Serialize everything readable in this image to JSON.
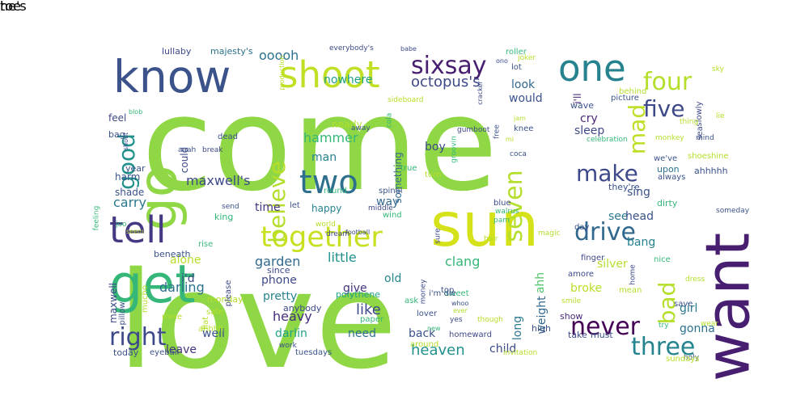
{
  "words": [
    {
      "text": "come",
      "color": "#8fd744"
    },
    {
      "text": "love",
      "color": "#8fd744"
    },
    {
      "text": "sun",
      "color": "#d5e21a"
    },
    {
      "text": "want",
      "color": "#481f70"
    },
    {
      "text": "know",
      "color": "#3b528b"
    },
    {
      "text": "one",
      "color": "#26828e"
    },
    {
      "text": "get",
      "color": "#35b779"
    },
    {
      "text": "go",
      "color": "#8fd744"
    },
    {
      "text": "tell",
      "color": "#443983"
    },
    {
      "text": "shoot",
      "color": "#c0df25"
    },
    {
      "text": "sixsay",
      "color": "#481f70"
    },
    {
      "text": "together",
      "color": "#c8e020"
    },
    {
      "text": "two",
      "color": "#2d708e"
    },
    {
      "text": "four",
      "color": "#b5de2b"
    },
    {
      "text": "five",
      "color": "#3e4989"
    },
    {
      "text": "mad",
      "color": "#bddf26"
    },
    {
      "text": "make",
      "color": "#3e4989"
    },
    {
      "text": "drive",
      "color": "#31688e"
    },
    {
      "text": "never",
      "color": "#440154"
    },
    {
      "text": "three",
      "color": "#25858e"
    },
    {
      "text": "right",
      "color": "#3e4989"
    },
    {
      "text": "bad",
      "color": "#b5de2b"
    },
    {
      "text": "seven",
      "color": "#b5de2b"
    },
    {
      "text": "believe",
      "color": "#b5de2b"
    },
    {
      "text": "good",
      "color": "#21918c"
    },
    {
      "text": "octopus's",
      "color": "#3e4989"
    },
    {
      "text": "ooooh",
      "color": "#2c728e"
    },
    {
      "text": "nowhere",
      "color": "#1fa187"
    },
    {
      "text": "look",
      "color": "#31688e"
    },
    {
      "text": "would",
      "color": "#3b528b"
    },
    {
      "text": "cry",
      "color": "#482878"
    },
    {
      "text": "sleep",
      "color": "#3e4989"
    },
    {
      "text": "hammer",
      "color": "#35b779"
    },
    {
      "text": "man",
      "color": "#26828e"
    },
    {
      "text": "boy",
      "color": "#3e4989"
    },
    {
      "text": "maxwell's",
      "color": "#3e4989"
    },
    {
      "text": "carry",
      "color": "#2a788e"
    },
    {
      "text": "sing",
      "color": "#3b528b"
    },
    {
      "text": "see",
      "color": "#2a788e"
    },
    {
      "text": "head",
      "color": "#3b528b"
    },
    {
      "text": "bang",
      "color": "#26828e"
    },
    {
      "text": "garden",
      "color": "#31688e"
    },
    {
      "text": "little",
      "color": "#21918c"
    },
    {
      "text": "clang",
      "color": "#35b779"
    },
    {
      "text": "old",
      "color": "#25858e"
    },
    {
      "text": "ahh",
      "color": "#50c46a"
    },
    {
      "text": "silver",
      "color": "#b5de2b"
    },
    {
      "text": "way",
      "color": "#31688e"
    },
    {
      "text": "time",
      "color": "#46337e"
    },
    {
      "text": "phone",
      "color": "#3e4989"
    },
    {
      "text": "pretty",
      "color": "#26828e"
    },
    {
      "text": "give",
      "color": "#46337e"
    },
    {
      "text": "like",
      "color": "#3e4989"
    },
    {
      "text": "weight",
      "color": "#31688e"
    },
    {
      "text": "darling",
      "color": "#2c728e"
    },
    {
      "text": "heavy",
      "color": "#472d7b"
    },
    {
      "text": "darlin",
      "color": "#1fa187"
    },
    {
      "text": "need",
      "color": "#2c728e"
    },
    {
      "text": "back",
      "color": "#3b528b"
    },
    {
      "text": "heaven",
      "color": "#21918c"
    },
    {
      "text": "child",
      "color": "#3e4989"
    },
    {
      "text": "long",
      "color": "#2a788e"
    },
    {
      "text": "broke",
      "color": "#b5de2b"
    },
    {
      "text": "girl",
      "color": "#2a788e"
    },
    {
      "text": "gonna",
      "color": "#2c728e"
    },
    {
      "text": "well",
      "color": "#3b528b"
    },
    {
      "text": "leave",
      "color": "#46337e"
    },
    {
      "text": "alone",
      "color": "#b5de2b"
    },
    {
      "text": "i'd",
      "color": "#3e4989"
    },
    {
      "text": "happy",
      "color": "#26828e"
    },
    {
      "text": "something",
      "color": "#31688e"
    },
    {
      "text": "nearly",
      "color": "#b5de2b"
    },
    {
      "text": "harm",
      "color": "#3b528b"
    },
    {
      "text": "shade",
      "color": "#3b528b"
    },
    {
      "text": "could",
      "color": "#3e4989"
    },
    {
      "text": "upon",
      "color": "#2c728e"
    },
    {
      "text": "ahhhhh",
      "color": "#3b528b"
    },
    {
      "text": "they're",
      "color": "#3b528b"
    },
    {
      "text": "always",
      "color": "#3b528b"
    },
    {
      "text": "dirty",
      "color": "#35b779"
    },
    {
      "text": "i'll",
      "color": "#482878"
    },
    {
      "text": "lullaby",
      "color": "#3e4989"
    },
    {
      "text": "majesty's",
      "color": "#2c728e"
    },
    {
      "text": "feel",
      "color": "#3e4989"
    },
    {
      "text": "bag",
      "color": "#3b528b"
    },
    {
      "text": "year",
      "color": "#3b528b"
    },
    {
      "text": "maxwell",
      "color": "#3e4989"
    },
    {
      "text": "mucho",
      "color": "#b5de2b"
    },
    {
      "text": "pillow",
      "color": "#3b528b"
    },
    {
      "text": "today",
      "color": "#3b528b"
    },
    {
      "text": "eyeball",
      "color": "#3b528b"
    },
    {
      "text": "tuesdays",
      "color": "#3b528b"
    },
    {
      "text": "work",
      "color": "#3b528b"
    },
    {
      "text": "homeward",
      "color": "#3e4989"
    },
    {
      "text": "invitation",
      "color": "#b5de2b"
    },
    {
      "text": "holy",
      "color": "#3b528b"
    },
    {
      "text": "sundays",
      "color": "#b5de2b"
    },
    {
      "text": "must",
      "color": "#3b528b"
    },
    {
      "text": "take",
      "color": "#3e4989"
    },
    {
      "text": "show",
      "color": "#482878"
    },
    {
      "text": "high",
      "color": "#3b528b"
    },
    {
      "text": "lover",
      "color": "#3b528b"
    },
    {
      "text": "ask",
      "color": "#35b779"
    },
    {
      "text": "paper",
      "color": "#35b779"
    },
    {
      "text": "polythene",
      "color": "#1fa187"
    },
    {
      "text": "anybody",
      "color": "#3e4989"
    },
    {
      "text": "since",
      "color": "#3e4989"
    },
    {
      "text": "king",
      "color": "#35b779"
    },
    {
      "text": "monday",
      "color": "#b5de2b"
    },
    {
      "text": "beneath",
      "color": "#3b528b"
    },
    {
      "text": "please",
      "color": "#3e4989"
    },
    {
      "text": "flat",
      "color": "#b5de2b"
    },
    {
      "text": "safe",
      "color": "#b5de2b"
    },
    {
      "text": "mine",
      "color": "#b5de2b"
    },
    {
      "text": "ahhhh",
      "color": "#b5de2b"
    },
    {
      "text": "rise",
      "color": "#35b779"
    },
    {
      "text": "shoeshine",
      "color": "#b5de2b"
    },
    {
      "text": "sky",
      "color": "#b5de2b"
    },
    {
      "text": "slowly",
      "color": "#3e4989"
    },
    {
      "text": "lie",
      "color": "#b5de2b"
    },
    {
      "text": "mind",
      "color": "#3b528b"
    },
    {
      "text": "sea",
      "color": "#3e4989"
    },
    {
      "text": "behind",
      "color": "#b5de2b"
    },
    {
      "text": "picture",
      "color": "#3b528b"
    },
    {
      "text": "wave",
      "color": "#3b528b"
    },
    {
      "text": "roller",
      "color": "#35b779"
    },
    {
      "text": "joker",
      "color": "#b5de2b"
    },
    {
      "text": "lot",
      "color": "#3b528b"
    },
    {
      "text": "knee",
      "color": "#3b528b"
    },
    {
      "text": "free",
      "color": "#3b528b"
    },
    {
      "text": "jam",
      "color": "#b5de2b"
    },
    {
      "text": "we've",
      "color": "#3b528b"
    },
    {
      "text": "monkey",
      "color": "#b5de2b"
    },
    {
      "text": "thing",
      "color": "#b5de2b"
    },
    {
      "text": "someday",
      "color": "#3b528b"
    },
    {
      "text": "celebration",
      "color": "#35b779"
    },
    {
      "text": "coca",
      "color": "#3b528b"
    },
    {
      "text": "mi",
      "color": "#b5de2b"
    },
    {
      "text": "blue",
      "color": "#3e4989"
    },
    {
      "text": "walrus",
      "color": "#35b779"
    },
    {
      "text": "pam",
      "color": "#35b779"
    },
    {
      "text": "day",
      "color": "#3b528b"
    },
    {
      "text": "magic",
      "color": "#b5de2b"
    },
    {
      "text": "finger",
      "color": "#3e4989"
    },
    {
      "text": "nice",
      "color": "#35b779"
    },
    {
      "text": "mean",
      "color": "#b5de2b"
    },
    {
      "text": "home",
      "color": "#3e4989"
    },
    {
      "text": "save",
      "color": "#3b528b"
    },
    {
      "text": "dress",
      "color": "#b5de2b"
    },
    {
      "text": "try",
      "color": "#35b779"
    },
    {
      "text": "wear",
      "color": "#b5de2b"
    },
    {
      "text": "smile",
      "color": "#b5de2b"
    },
    {
      "text": "amore",
      "color": "#3e4989"
    },
    {
      "text": "though",
      "color": "#b5de2b"
    },
    {
      "text": "sweet",
      "color": "#35b779"
    },
    {
      "text": "whoo",
      "color": "#3b528b"
    },
    {
      "text": "top",
      "color": "#3b528b"
    },
    {
      "text": "yes",
      "color": "#3e4989"
    },
    {
      "text": "i'm die",
      "color": "#3b528b"
    },
    {
      "text": "money",
      "color": "#3e4989"
    },
    {
      "text": "sure",
      "color": "#3e4989"
    },
    {
      "text": "hair",
      "color": "#b5de2b"
    },
    {
      "text": "ever",
      "color": "#b5de2b"
    },
    {
      "text": "new",
      "color": "#35b779"
    },
    {
      "text": "around",
      "color": "#b5de2b"
    },
    {
      "text": "turn",
      "color": "#b5de2b"
    },
    {
      "text": "true",
      "color": "#35b779"
    },
    {
      "text": "gumboot",
      "color": "#3e4989"
    },
    {
      "text": "groovin",
      "color": "#35b779"
    },
    {
      "text": "spinal",
      "color": "#3b528b"
    },
    {
      "text": "middle",
      "color": "#3e4989"
    },
    {
      "text": "wind",
      "color": "#35b779"
    },
    {
      "text": "world",
      "color": "#b5de2b"
    },
    {
      "text": "dream",
      "color": "#3e4989"
    },
    {
      "text": "football",
      "color": "#3e4989"
    },
    {
      "text": "round",
      "color": "#35b779"
    },
    {
      "text": "let",
      "color": "#3b528b"
    },
    {
      "text": "away",
      "color": "#3b528b"
    },
    {
      "text": "dead",
      "color": "#3b528b"
    },
    {
      "text": "break",
      "color": "#3e4989"
    },
    {
      "text": "aaah",
      "color": "#3b528b"
    },
    {
      "text": "send",
      "color": "#3b528b"
    },
    {
      "text": "joo",
      "color": "#35b779"
    },
    {
      "text": "feeling",
      "color": "#35b779"
    },
    {
      "text": "seem",
      "color": "#b5de2b"
    },
    {
      "text": "shout",
      "color": "#3e4989"
    },
    {
      "text": "blob",
      "color": "#35b779"
    },
    {
      "text": "production",
      "color": "#b5de2b"
    },
    {
      "text": "sideboard",
      "color": "#b5de2b"
    },
    {
      "text": "everybody's",
      "color": "#3e4989"
    },
    {
      "text": "babe",
      "color": "#3e4989"
    },
    {
      "text": "ono",
      "color": "#3e4989"
    },
    {
      "text": "cola",
      "color": "#35b779"
    },
    {
      "text": "cracker",
      "color": "#3e4989"
    },
    {
      "text": "he's",
      "color": "#35b779"
    },
    {
      "text": "toe",
      "color": "#b5de2b"
    }
  ]
}
